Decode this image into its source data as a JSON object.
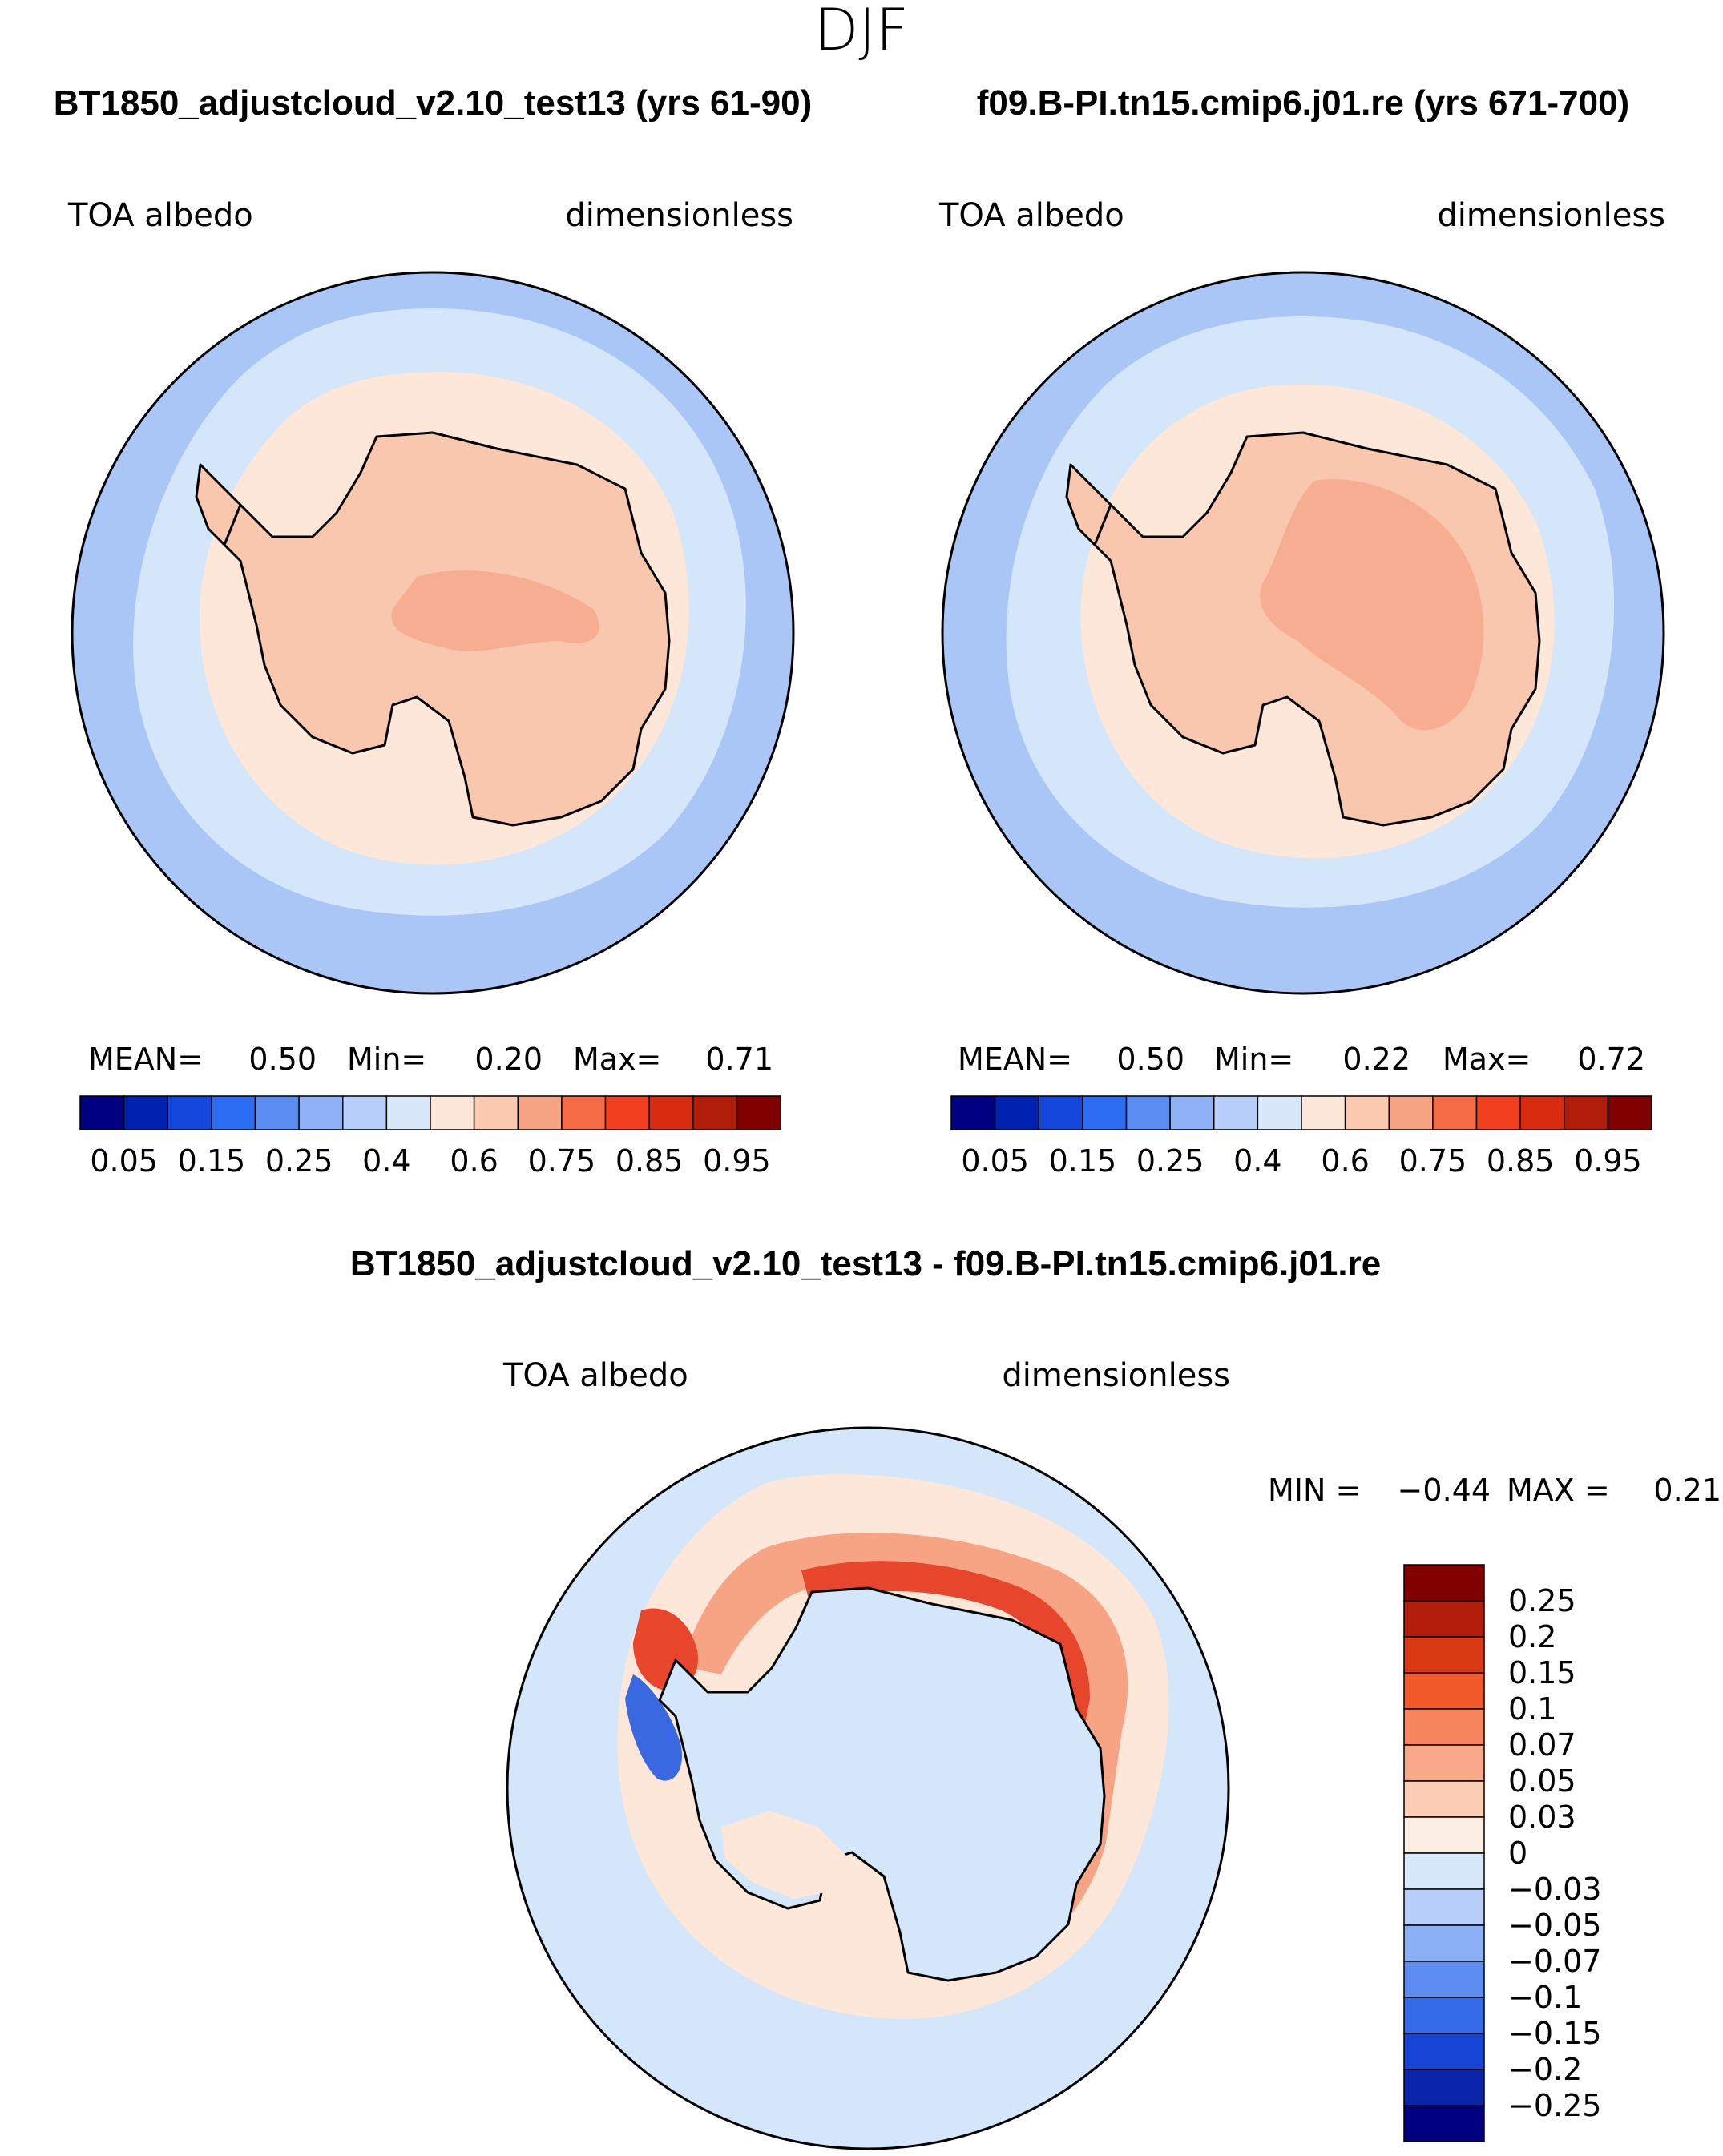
{
  "season_title": "DJF",
  "colors": {
    "ocean_far": "#a9c6f7",
    "ocean_mid": "#d4e6fa",
    "sea_ice": "#fde7d9",
    "land": "#f9c6ae",
    "land_high": "#f6ad92",
    "coast": "#000000",
    "diff_base": "#d4e6fa",
    "diff_light_pos": "#fde7d9",
    "diff_pos": "#f7a485",
    "diff_strong_pos": "#e8462c",
    "diff_neg": "#3a68e0"
  },
  "panels": [
    {
      "title": "BT1850_adjustcloud_v2.10_test13 (yrs 61-90)",
      "variable": "TOA albedo",
      "units": "dimensionless",
      "stats": {
        "mean_label": "MEAN=",
        "mean": "0.50",
        "min_label": "Min=",
        "min": "0.20",
        "max_label": "Max=",
        "max": "0.71"
      }
    },
    {
      "title": "f09.B-PI.tn15.cmip6.j01.re (yrs 671-700)",
      "variable": "TOA albedo",
      "units": "dimensionless",
      "stats": {
        "mean_label": "MEAN=",
        "mean": "0.50",
        "min_label": "Min=",
        "min": "0.22",
        "max_label": "Max=",
        "max": "0.72"
      }
    }
  ],
  "abs_colorbar": {
    "colors": [
      "#000080",
      "#0022b0",
      "#1447dc",
      "#2b6cf2",
      "#5b8cf2",
      "#8fb1f5",
      "#b7cff8",
      "#d8e7fa",
      "#fde7d9",
      "#fbc9b0",
      "#f7a485",
      "#f56b45",
      "#f0401f",
      "#d72c10",
      "#b01d08",
      "#800000"
    ],
    "tick_labels": [
      "0.05",
      "0.15",
      "0.25",
      "0.4",
      "0.6",
      "0.75",
      "0.85",
      "0.95"
    ]
  },
  "diff_panel": {
    "title": "BT1850_adjustcloud_v2.10_test13 - f09.B-PI.tn15.cmip6.j01.re",
    "variable": "TOA albedo",
    "units": "dimensionless",
    "min_label": "MIN =",
    "min": "−0.44",
    "max_label": "MAX =",
    "max": "0.21"
  },
  "diff_colorbar": {
    "colors_top_to_bottom": [
      "#800000",
      "#b21c0a",
      "#d93a14",
      "#f25a2a",
      "#f7855e",
      "#f9a889",
      "#fbcdb5",
      "#fdeee3",
      "#d8e8fb",
      "#b7cff8",
      "#8cb0f5",
      "#5e8df2",
      "#356ae8",
      "#1844d6",
      "#0a24aa",
      "#000080"
    ],
    "tick_labels": [
      "0.25",
      "0.2",
      "0.15",
      "0.1",
      "0.07",
      "0.05",
      "0.03",
      "0",
      "−0.03",
      "−0.05",
      "−0.07",
      "−0.1",
      "−0.15",
      "−0.2",
      "−0.25"
    ]
  }
}
